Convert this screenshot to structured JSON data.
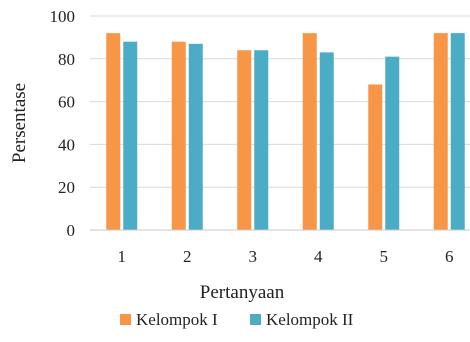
{
  "chart_data": {
    "type": "bar",
    "xlabel": "Pertanyaan",
    "ylabel": "Persentase",
    "categories": [
      "1",
      "2",
      "3",
      "4",
      "5",
      "6"
    ],
    "series": [
      {
        "name": "Kelompok I",
        "color": "#F79646",
        "values": [
          92,
          88,
          84,
          92,
          68,
          92
        ]
      },
      {
        "name": "Kelompok II",
        "color": "#4BACC6",
        "values": [
          88,
          87,
          84,
          83,
          81,
          92
        ]
      }
    ],
    "ylim": [
      0,
      100
    ],
    "yticks": [
      "0",
      "20",
      "40",
      "60",
      "80",
      "100"
    ],
    "grid": true,
    "legend_position": "bottom"
  }
}
